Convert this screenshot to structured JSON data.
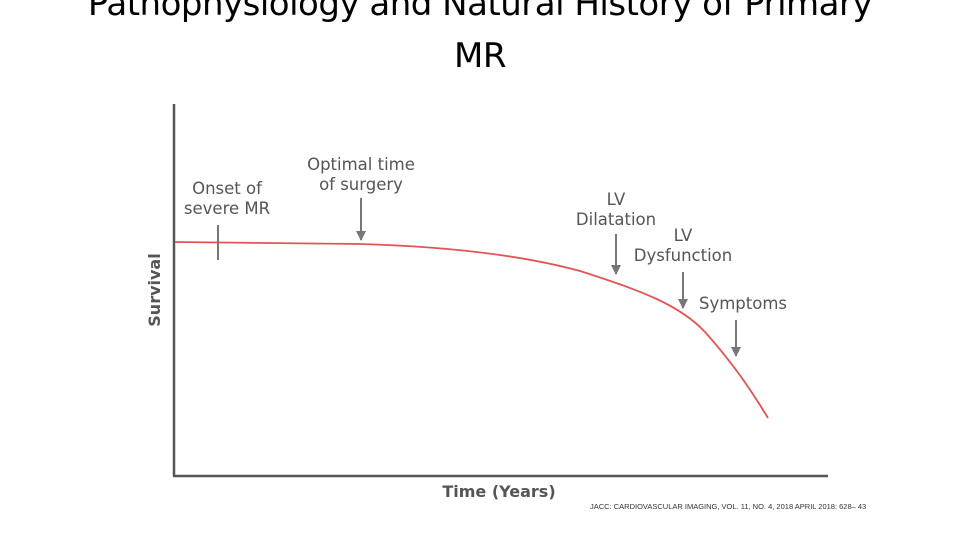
{
  "slide": {
    "title_line1": "Pathophysiology and Natural History of Primary",
    "title_line2": "MR"
  },
  "diagram": {
    "x_axis_label": "Time (Years)",
    "y_axis_label": "Survival",
    "annotations": {
      "onset_line1": "Onset of",
      "onset_line2": "severe MR",
      "optimal_line1": "Optimal time",
      "optimal_line2": "of surgery",
      "lv_dilatation_line1": "LV",
      "lv_dilatation_line2": "Dilatation",
      "lv_dysfunction_line1": "LV",
      "lv_dysfunction_line2": "Dysfunction",
      "symptoms": "Symptoms"
    },
    "colors": {
      "curve": "#e05555",
      "axis": "#555555",
      "label": "#555555"
    }
  },
  "citation": "JACC: CARDIOVASCULAR IMAGING, VOL. 11, NO. 4, 2018 APRIL 2018: 628– 43"
}
